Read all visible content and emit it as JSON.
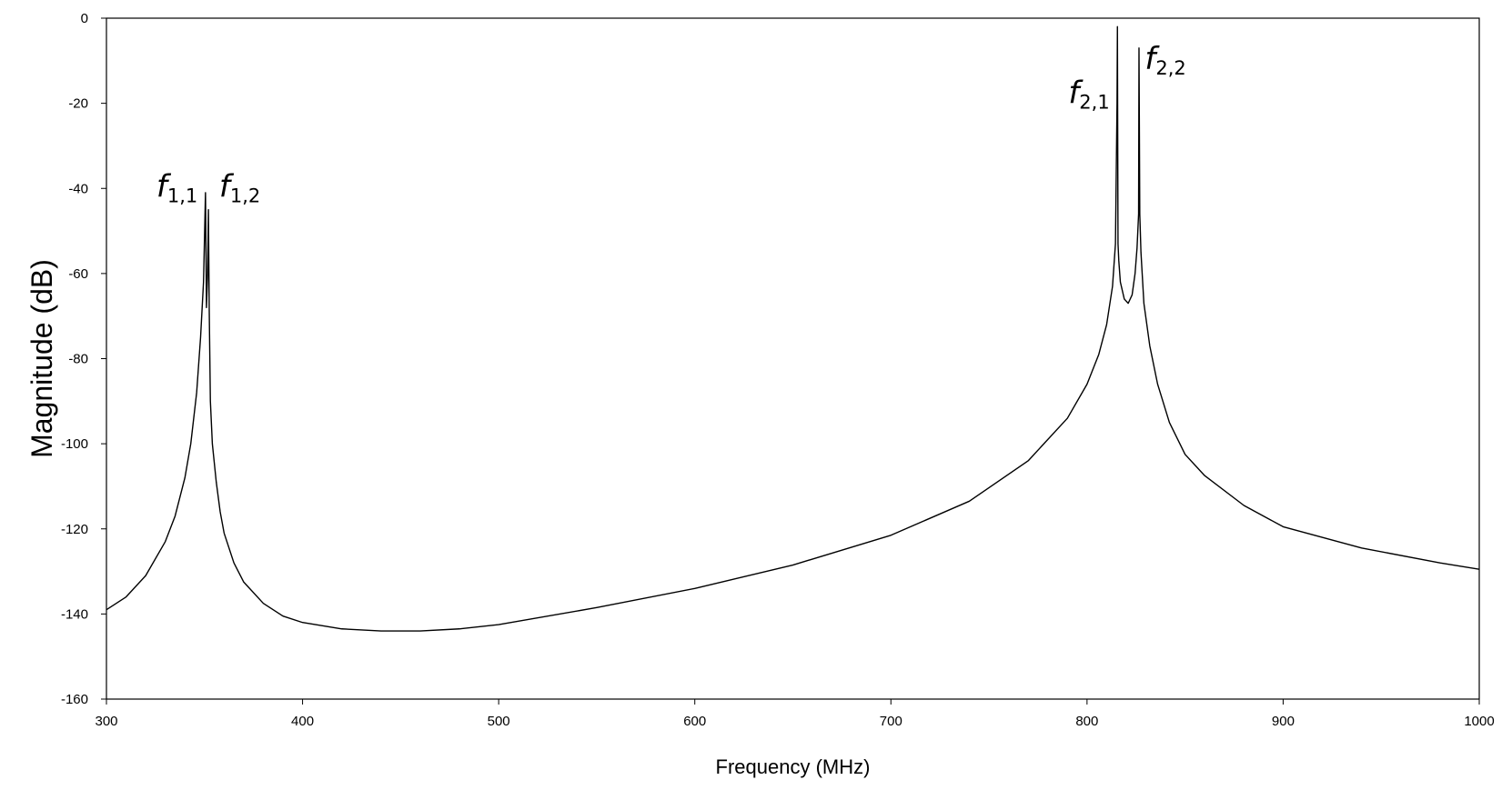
{
  "chart_data": {
    "type": "line",
    "title": "",
    "xlabel": "Frequency (MHz)",
    "ylabel": "Magnitude (dB)",
    "xlim": [
      300,
      1000
    ],
    "ylim": [
      -160,
      0
    ],
    "xticks": [
      300,
      400,
      500,
      600,
      700,
      800,
      900,
      1000
    ],
    "yticks": [
      0,
      -20,
      -40,
      -60,
      -80,
      -100,
      -120,
      -140,
      -160
    ],
    "grid": false,
    "legend": "none",
    "line_color": "#000000",
    "series": [
      {
        "x": [
          300,
          310,
          320,
          330,
          335,
          340,
          343,
          346,
          348,
          349.5,
          350.5,
          351,
          351.6,
          352,
          352.4,
          353,
          354,
          356,
          358,
          360,
          365,
          370,
          380,
          390,
          400,
          420,
          440,
          460,
          480,
          500,
          550,
          600,
          650,
          700,
          740,
          770,
          790,
          800,
          806,
          810,
          813,
          814.5,
          815.3,
          815.5,
          815.8,
          816.2,
          817,
          819,
          821,
          823,
          824.5,
          825.5,
          826.3,
          826.5,
          826.9,
          827.5,
          829,
          832,
          836,
          842,
          850,
          860,
          880,
          900,
          940,
          980,
          1000
        ],
        "y": [
          -139,
          -136,
          -131,
          -123,
          -117,
          -108,
          -100,
          -88,
          -75,
          -62,
          -41,
          -68,
          -60,
          -45,
          -68,
          -90,
          -100,
          -109,
          -116,
          -121,
          -128,
          -132.5,
          -137.5,
          -140.5,
          -142,
          -143.5,
          -144,
          -144,
          -143.5,
          -142.5,
          -138.5,
          -134,
          -128.5,
          -121.5,
          -113.5,
          -104,
          -94,
          -86,
          -79,
          -72,
          -63,
          -53,
          -20,
          -2,
          -53,
          -57,
          -62,
          -66,
          -67,
          -65,
          -60,
          -54,
          -46,
          -7,
          -46,
          -55,
          -67,
          -77,
          -86,
          -95,
          -102.5,
          -107.5,
          -114.5,
          -119.5,
          -124.5,
          -128,
          -129.5
        ]
      }
    ],
    "annotations": [
      {
        "label": "f",
        "sub": "1,1",
        "x": 336,
        "y": -42
      },
      {
        "label": "f",
        "sub": "1,2",
        "x": 368,
        "y": -42
      },
      {
        "label": "f",
        "sub": "2,1",
        "x": 801,
        "y": -20
      },
      {
        "label": "f",
        "sub": "2,2",
        "x": 840,
        "y": -12
      }
    ]
  }
}
